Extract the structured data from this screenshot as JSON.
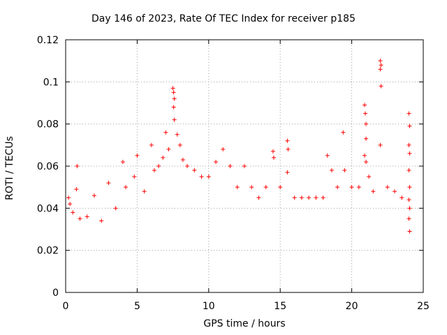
{
  "chart_data": {
    "type": "scatter",
    "title": "Day 146 of 2023, Rate Of TEC Index for receiver p185",
    "xlabel": "GPS time / hours",
    "ylabel": "ROTI / TECUs",
    "xlim": [
      0,
      25
    ],
    "ylim": [
      0,
      0.12
    ],
    "xticks": [
      "0",
      "5",
      "10",
      "15",
      "20",
      "25"
    ],
    "yticks": [
      "0",
      "0.02",
      "0.04",
      "0.06",
      "0.08",
      "0.1",
      "0.12"
    ],
    "grid": true,
    "marker": "+",
    "color": "#ff0000",
    "series": [
      {
        "points": [
          [
            0.2,
            0.045
          ],
          [
            0.3,
            0.042
          ],
          [
            0.5,
            0.038
          ],
          [
            0.8,
            0.06
          ],
          [
            0.75,
            0.049
          ],
          [
            1.0,
            0.035
          ],
          [
            1.5,
            0.036
          ],
          [
            2.0,
            0.046
          ],
          [
            2.5,
            0.034
          ],
          [
            3.0,
            0.052
          ],
          [
            3.5,
            0.04
          ],
          [
            4.0,
            0.062
          ],
          [
            4.2,
            0.05
          ],
          [
            4.8,
            0.055
          ],
          [
            5.0,
            0.065
          ],
          [
            5.5,
            0.048
          ],
          [
            6.0,
            0.07
          ],
          [
            6.2,
            0.058
          ],
          [
            6.5,
            0.06
          ],
          [
            6.8,
            0.064
          ],
          [
            7.0,
            0.076
          ],
          [
            7.2,
            0.068
          ],
          [
            7.5,
            0.097
          ],
          [
            7.55,
            0.095
          ],
          [
            7.6,
            0.092
          ],
          [
            7.55,
            0.088
          ],
          [
            7.6,
            0.082
          ],
          [
            7.8,
            0.075
          ],
          [
            8.0,
            0.07
          ],
          [
            8.2,
            0.063
          ],
          [
            8.5,
            0.06
          ],
          [
            9.0,
            0.058
          ],
          [
            9.5,
            0.055
          ],
          [
            10.0,
            0.055
          ],
          [
            10.5,
            0.062
          ],
          [
            11.0,
            0.068
          ],
          [
            11.5,
            0.06
          ],
          [
            12.0,
            0.05
          ],
          [
            12.5,
            0.06
          ],
          [
            13.0,
            0.05
          ],
          [
            13.5,
            0.045
          ],
          [
            14.0,
            0.05
          ],
          [
            14.5,
            0.067
          ],
          [
            14.55,
            0.064
          ],
          [
            15.0,
            0.05
          ],
          [
            15.5,
            0.072
          ],
          [
            15.55,
            0.068
          ],
          [
            15.5,
            0.057
          ],
          [
            16.0,
            0.045
          ],
          [
            16.5,
            0.045
          ],
          [
            17.0,
            0.045
          ],
          [
            17.5,
            0.045
          ],
          [
            18.0,
            0.045
          ],
          [
            18.3,
            0.065
          ],
          [
            18.6,
            0.058
          ],
          [
            19.0,
            0.05
          ],
          [
            19.4,
            0.076
          ],
          [
            19.5,
            0.058
          ],
          [
            20.0,
            0.05
          ],
          [
            20.5,
            0.05
          ],
          [
            20.9,
            0.089
          ],
          [
            20.95,
            0.085
          ],
          [
            21.0,
            0.08
          ],
          [
            21.0,
            0.073
          ],
          [
            20.9,
            0.065
          ],
          [
            21.0,
            0.062
          ],
          [
            21.2,
            0.055
          ],
          [
            21.5,
            0.048
          ],
          [
            22.0,
            0.11
          ],
          [
            22.05,
            0.108
          ],
          [
            22.0,
            0.106
          ],
          [
            22.05,
            0.098
          ],
          [
            22.0,
            0.07
          ],
          [
            22.5,
            0.05
          ],
          [
            23.0,
            0.048
          ],
          [
            23.5,
            0.045
          ],
          [
            24.0,
            0.085
          ],
          [
            24.05,
            0.079
          ],
          [
            24.0,
            0.07
          ],
          [
            24.05,
            0.066
          ],
          [
            24.0,
            0.058
          ],
          [
            24.05,
            0.05
          ],
          [
            24.0,
            0.044
          ],
          [
            24.05,
            0.04
          ],
          [
            24.0,
            0.035
          ],
          [
            24.05,
            0.029
          ]
        ]
      }
    ]
  }
}
